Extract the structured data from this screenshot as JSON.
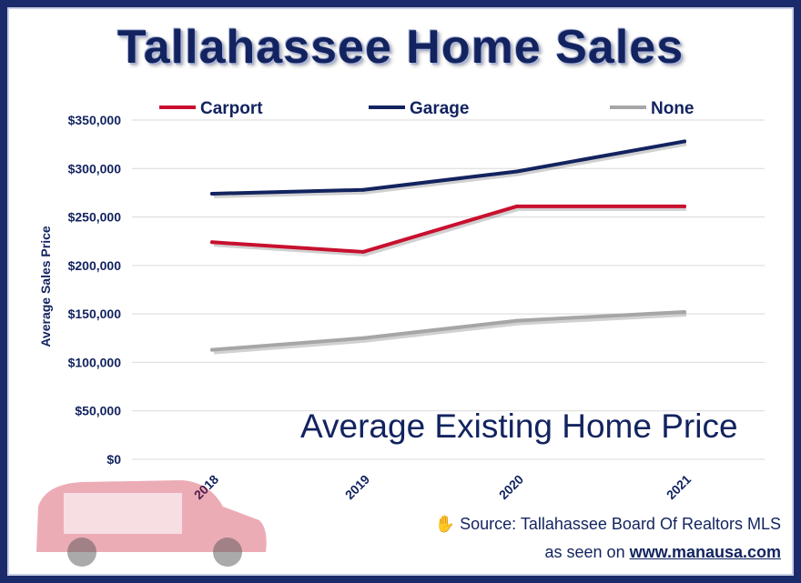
{
  "title": "Tallahassee Home Sales",
  "subtitle": "Average Existing Home Price",
  "source": "Source: Tallahassee Board Of Realtors MLS",
  "seen_prefix": "as seen on",
  "seen_link": "www.manausa.com",
  "colors": {
    "navy": "#12235f",
    "carport": "#c8102e",
    "garage": "#12235f",
    "none": "#a6a6a6"
  },
  "chart_data": {
    "type": "line",
    "title": "Tallahassee Home Sales",
    "xlabel": "",
    "ylabel": "Average Sales Price",
    "categories": [
      "2018",
      "2019",
      "2020",
      "2021"
    ],
    "ylim": [
      0,
      350000
    ],
    "yticks": [
      0,
      50000,
      100000,
      150000,
      200000,
      250000,
      300000,
      350000
    ],
    "ytick_labels": [
      "$0",
      "$50,000",
      "$100,000",
      "$150,000",
      "$200,000",
      "$250,000",
      "$300,000",
      "$350,000"
    ],
    "grid": true,
    "legend_position": "top",
    "series": [
      {
        "name": "Carport",
        "color": "#c8102e",
        "values": [
          224000,
          214000,
          261000,
          261000
        ]
      },
      {
        "name": "Garage",
        "color": "#12235f",
        "values": [
          274000,
          278000,
          297000,
          328000
        ]
      },
      {
        "name": "None",
        "color": "#a6a6a6",
        "values": [
          113000,
          125000,
          143000,
          152000
        ]
      }
    ]
  }
}
